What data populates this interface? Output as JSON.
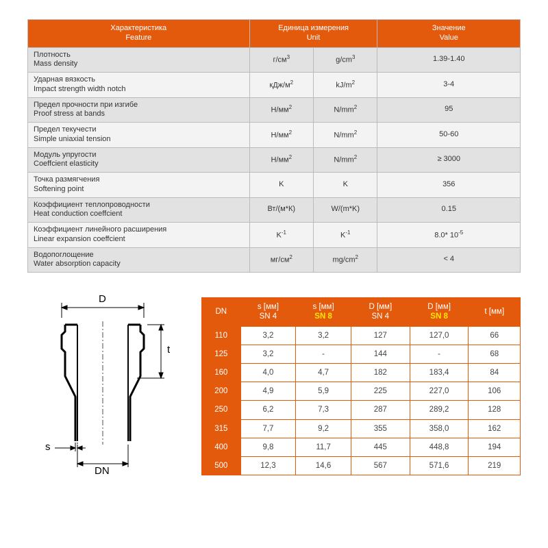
{
  "accent_color": "#e45a0d",
  "grid_border": "#bbb",
  "alt_row_dark": "#e2e2e2",
  "alt_row_light": "#f3f3f3",
  "feature_table": {
    "headers": {
      "feature_ru": "Характеристика",
      "feature_en": "Feature",
      "unit_ru": "Единица измерения",
      "unit_en": "Unit",
      "value_ru": "Значение",
      "value_en": "Value"
    },
    "rows": [
      {
        "ru": "Плотность",
        "en": "Mass density",
        "u_ru": "г/см",
        "u_ru_sup": "3",
        "u_en": "g/cm",
        "u_en_sup": "3",
        "val": "1.39-1.40"
      },
      {
        "ru": "Ударная вязкость",
        "en": "Impact strength width notch",
        "u_ru": "кДж/м",
        "u_ru_sup": "2",
        "u_en": "kJ/m",
        "u_en_sup": "2",
        "val": "3-4"
      },
      {
        "ru": "Предел прочности при изгибе",
        "en": "Proof stress at bands",
        "u_ru": "Н/мм",
        "u_ru_sup": "2",
        "u_en": "N/mm",
        "u_en_sup": "2",
        "val": "95"
      },
      {
        "ru": "Предел текучести",
        "en": "Simple uniaxial tension",
        "u_ru": "Н/мм",
        "u_ru_sup": "2",
        "u_en": "N/mm",
        "u_en_sup": "2",
        "val": "50-60"
      },
      {
        "ru": "Модуль упругости",
        "en": "Coeffcient elasticity",
        "u_ru": "Н/мм",
        "u_ru_sup": "2",
        "u_en": "N/mm",
        "u_en_sup": "2",
        "val": "≥ 3000"
      },
      {
        "ru": "Точка размягчения",
        "en": "Softening point",
        "u_ru": "K",
        "u_ru_sup": "",
        "u_en": "K",
        "u_en_sup": "",
        "val": "356"
      },
      {
        "ru": "Коэффициент теплопроводности",
        "en": "Heat conduction coeffcient",
        "u_ru": "Вт/(м*К)",
        "u_ru_sup": "",
        "u_en": "W/(m*K)",
        "u_en_sup": "",
        "val": "0.15"
      },
      {
        "ru": "Коэффициент линейного расширения",
        "en": "Linear expansion coeffcient",
        "u_ru": "K",
        "u_ru_sup": "-1",
        "u_en": "K",
        "u_en_sup": "-1",
        "val": "8.0* 10",
        "val_sup": "-5"
      },
      {
        "ru": "Водопоглощение",
        "en": "Water absorption capacity",
        "u_ru": "мг/см",
        "u_ru_sup": "2",
        "u_en": "mg/cm",
        "u_en_sup": "2",
        "val": "< 4"
      }
    ]
  },
  "diagram_labels": {
    "D": "D",
    "t": "t",
    "s": "s",
    "DN": "DN"
  },
  "dim_table": {
    "headers": {
      "dn": "DN",
      "s_sn4_l1": "s [мм]",
      "s_sn4_l2": "SN 4",
      "s_sn8_l1": "s [мм]",
      "s_sn8_l2": "SN 8",
      "d_sn4_l1": "D  [мм]",
      "d_sn4_l2": "SN 4",
      "d_sn8_l1": "D  [мм]",
      "d_sn8_l2": "SN 8",
      "t": "t [мм]"
    },
    "rows": [
      {
        "dn": "110",
        "s4": "3,2",
        "s8": "3,2",
        "d4": "127",
        "d8": "127,0",
        "t": "66"
      },
      {
        "dn": "125",
        "s4": "3,2",
        "s8": "-",
        "d4": "144",
        "d8": "-",
        "t": "68"
      },
      {
        "dn": "160",
        "s4": "4,0",
        "s8": "4,7",
        "d4": "182",
        "d8": "183,4",
        "t": "84"
      },
      {
        "dn": "200",
        "s4": "4,9",
        "s8": "5,9",
        "d4": "225",
        "d8": "227,0",
        "t": "106"
      },
      {
        "dn": "250",
        "s4": "6,2",
        "s8": "7,3",
        "d4": "287",
        "d8": "289,2",
        "t": "128"
      },
      {
        "dn": "315",
        "s4": "7,7",
        "s8": "9,2",
        "d4": "355",
        "d8": "358,0",
        "t": "162"
      },
      {
        "dn": "400",
        "s4": "9,8",
        "s8": "11,7",
        "d4": "445",
        "d8": "448,8",
        "t": "194"
      },
      {
        "dn": "500",
        "s4": "12,3",
        "s8": "14,6",
        "d4": "567",
        "d8": "571,6",
        "t": "219"
      }
    ]
  }
}
